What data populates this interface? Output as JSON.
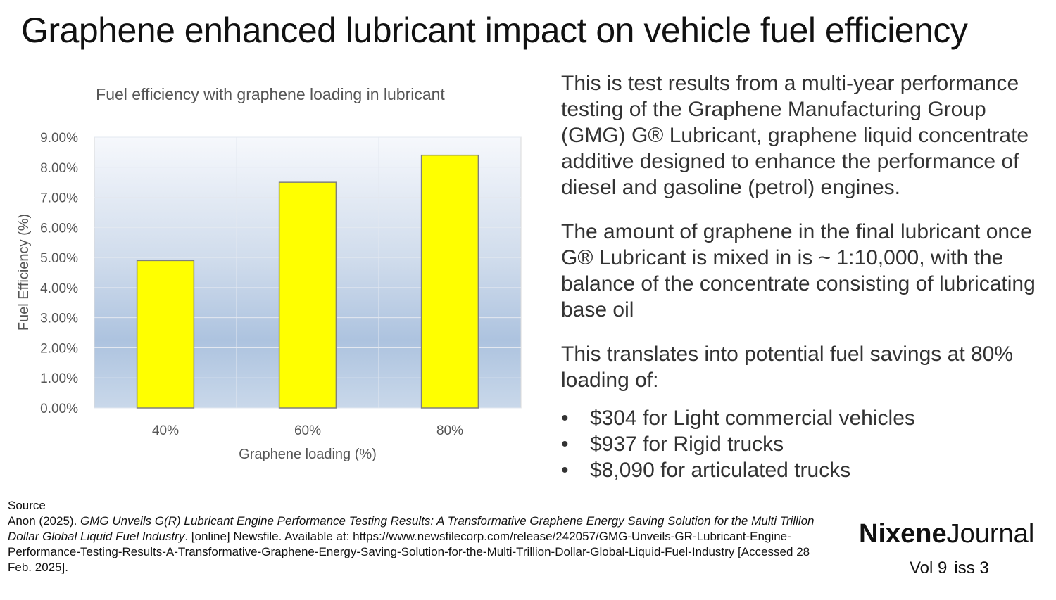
{
  "page": {
    "title": "Graphene enhanced lubricant impact on vehicle fuel efficiency"
  },
  "chart_data": {
    "type": "bar",
    "title": "Fuel efficiency with graphene loading in lubricant",
    "xlabel": "Graphene loading (%)",
    "ylabel": "Fuel Efficiency (%)",
    "categories": [
      "40%",
      "60%",
      "80%"
    ],
    "values": [
      4.9,
      7.5,
      8.4
    ],
    "ylim": [
      0,
      9
    ],
    "yticks": [
      "0.00%",
      "1.00%",
      "2.00%",
      "3.00%",
      "4.00%",
      "5.00%",
      "6.00%",
      "7.00%",
      "8.00%",
      "9.00%"
    ],
    "grid": true,
    "bar_color": "#ffff00",
    "bar_edge_color": "#7f7f7f"
  },
  "body": {
    "para1": "This is test results from a multi-year performance testing of the Graphene Manufacturing Group (GMG) G® Lubricant, graphene liquid concentrate additive designed to enhance the performance of diesel and gasoline (petrol) engines.",
    "para2": "The amount of graphene in the final lubricant once G® Lubricant is mixed in is ~ 1:10,000, with the balance of the concentrate consisting of lubricating base oil",
    "para3": "This translates into potential fuel savings at 80% loading of:",
    "bullet_glyph": "•",
    "bullets": [
      "$304 for Light commercial vehicles",
      "$937 for Rigid trucks",
      "$8,090 for articulated trucks"
    ]
  },
  "source": {
    "heading": "Source",
    "author": "Anon (2025).",
    "article_title": "GMG Unveils G(R) Lubricant Engine Performance Testing Results: A Transformative Graphene Energy Saving Solution for the Multi Trillion Dollar Global Liquid Fuel Industry",
    "rest": ". [online] Newsfile. Available at: https://www.newsfilecorp.com/release/242057/GMG-Unveils-GR-Lubricant-Engine-Performance-Testing-Results-A-Transformative-Graphene-Energy-Saving-Solution-for-the-Multi-Trillion-Dollar-Global-Liquid-Fuel-Industry [Accessed 28 Feb. 2025]."
  },
  "brand": {
    "bold": "Nixene",
    "regular": "Journal",
    "volume": "Vol 9",
    "issue": "iss 3"
  }
}
